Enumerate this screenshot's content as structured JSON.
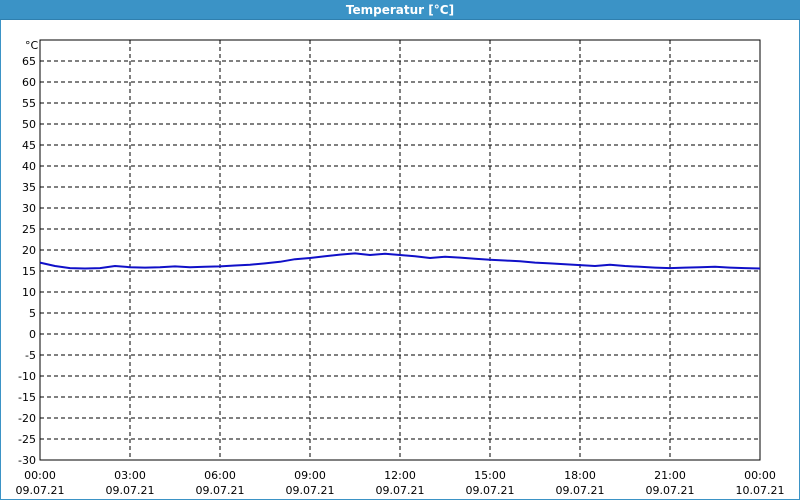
{
  "window": {
    "title": "Temperatur [°C]"
  },
  "colors": {
    "title_bar": "#3b93c6",
    "series": "#1010c8",
    "grid": "#000000"
  },
  "chart_data": {
    "type": "line",
    "title": "Temperatur [°C]",
    "ylabel": "°C",
    "xlabel": "",
    "ylim": [
      -30,
      70
    ],
    "xlim": [
      "09.07.21 00:00",
      "10.07.21 00:00"
    ],
    "grid": true,
    "yticks": [
      65,
      60,
      55,
      50,
      45,
      40,
      35,
      30,
      25,
      20,
      15,
      10,
      5,
      0,
      -5,
      -10,
      -15,
      -20,
      -25,
      -30
    ],
    "xticks": [
      {
        "time": "00:00",
        "date": "09.07.21"
      },
      {
        "time": "03:00",
        "date": "09.07.21"
      },
      {
        "time": "06:00",
        "date": "09.07.21"
      },
      {
        "time": "09:00",
        "date": "09.07.21"
      },
      {
        "time": "12:00",
        "date": "09.07.21"
      },
      {
        "time": "15:00",
        "date": "09.07.21"
      },
      {
        "time": "18:00",
        "date": "09.07.21"
      },
      {
        "time": "21:00",
        "date": "09.07.21"
      },
      {
        "time": "00:00",
        "date": "10.07.21"
      }
    ],
    "series": [
      {
        "x": [
          "09.07.21 00:00",
          "09.07.21 00:30",
          "09.07.21 01:00",
          "09.07.21 01:30",
          "09.07.21 02:00",
          "09.07.21 02:30",
          "09.07.21 03:00",
          "09.07.21 03:30",
          "09.07.21 04:00",
          "09.07.21 04:30",
          "09.07.21 05:00",
          "09.07.21 05:30",
          "09.07.21 06:00",
          "09.07.21 06:30",
          "09.07.21 07:00",
          "09.07.21 07:30",
          "09.07.21 08:00",
          "09.07.21 08:30",
          "09.07.21 09:00",
          "09.07.21 09:30",
          "09.07.21 10:00",
          "09.07.21 10:30",
          "09.07.21 11:00",
          "09.07.21 11:30",
          "09.07.21 12:00",
          "09.07.21 12:30",
          "09.07.21 13:00",
          "09.07.21 13:30",
          "09.07.21 14:00",
          "09.07.21 14:30",
          "09.07.21 15:00",
          "09.07.21 15:30",
          "09.07.21 16:00",
          "09.07.21 16:30",
          "09.07.21 17:00",
          "09.07.21 17:30",
          "09.07.21 18:00",
          "09.07.21 18:30",
          "09.07.21 19:00",
          "09.07.21 19:30",
          "09.07.21 20:00",
          "09.07.21 20:30",
          "09.07.21 21:00",
          "09.07.21 21:30",
          "09.07.21 22:00",
          "09.07.21 22:30",
          "09.07.21 23:00",
          "09.07.21 23:30",
          "10.07.21 00:00"
        ],
        "y": [
          17.0,
          16.2,
          15.7,
          15.6,
          15.7,
          16.2,
          15.9,
          15.8,
          15.9,
          16.1,
          15.9,
          16.0,
          16.1,
          16.3,
          16.5,
          16.8,
          17.2,
          17.8,
          18.1,
          18.5,
          18.9,
          19.2,
          18.8,
          19.1,
          18.8,
          18.5,
          18.1,
          18.4,
          18.2,
          17.9,
          17.7,
          17.5,
          17.3,
          17.0,
          16.8,
          16.6,
          16.4,
          16.2,
          16.5,
          16.2,
          16.0,
          15.8,
          15.7,
          15.8,
          15.9,
          16.0,
          15.8,
          15.7,
          15.6
        ]
      }
    ]
  }
}
